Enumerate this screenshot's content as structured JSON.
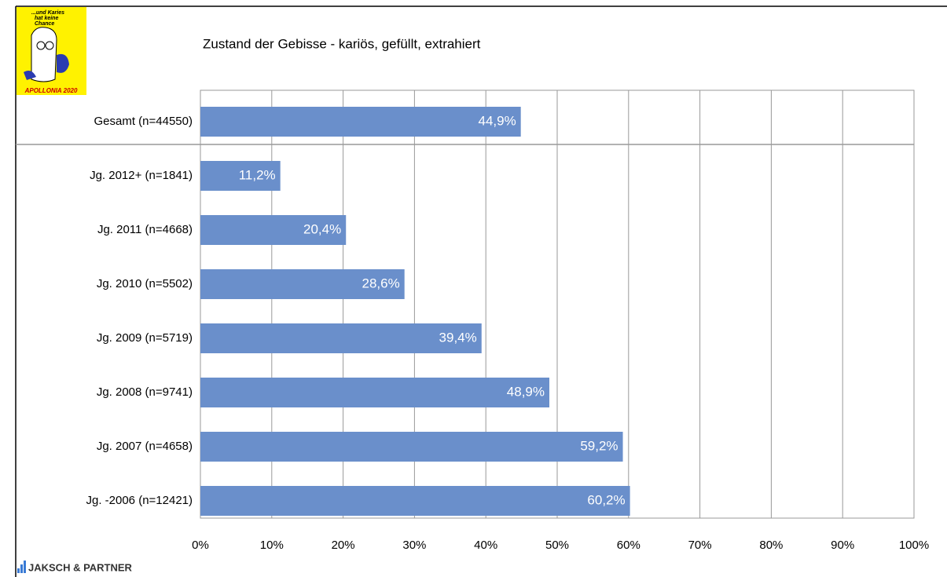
{
  "chart_data": {
    "type": "barh",
    "title": "Zustand der Gebisse - kariös, gefüllt, extrahiert",
    "categories": [
      "Gesamt (n=44550)",
      "Jg. 2012+ (n=1841)",
      "Jg. 2011 (n=4668)",
      "Jg. 2010 (n=5502)",
      "Jg. 2009 (n=5719)",
      "Jg. 2008 (n=9741)",
      "Jg. 2007 (n=4658)",
      "Jg. -2006 (n=12421)"
    ],
    "values": [
      44.9,
      11.2,
      20.4,
      28.6,
      39.4,
      48.9,
      59.2,
      60.2
    ],
    "value_labels": [
      "44,9%",
      "11,2%",
      "20,4%",
      "28,6%",
      "39,4%",
      "48,9%",
      "59,2%",
      "60,2%"
    ],
    "color": "#6a8fcb",
    "xlim": [
      0,
      100
    ],
    "xticks": [
      {
        "value": 0,
        "label": "0%"
      },
      {
        "value": 10,
        "label": "10%"
      },
      {
        "value": 20,
        "label": "20%"
      },
      {
        "value": 30,
        "label": "30%"
      },
      {
        "value": 40,
        "label": "40%"
      },
      {
        "value": 50,
        "label": "50%"
      },
      {
        "value": 60,
        "label": "60%"
      },
      {
        "value": 70,
        "label": "70%"
      },
      {
        "value": 80,
        "label": "80%"
      },
      {
        "value": 90,
        "label": "90%"
      },
      {
        "value": 100,
        "label": "100%"
      }
    ],
    "grid": true
  },
  "logo": {
    "slogan": [
      "...und Karies",
      "hat keine",
      "Chance"
    ],
    "caption": "APOLLONIA 2020"
  },
  "footer": {
    "brand": "JAKSCH & PARTNER"
  }
}
